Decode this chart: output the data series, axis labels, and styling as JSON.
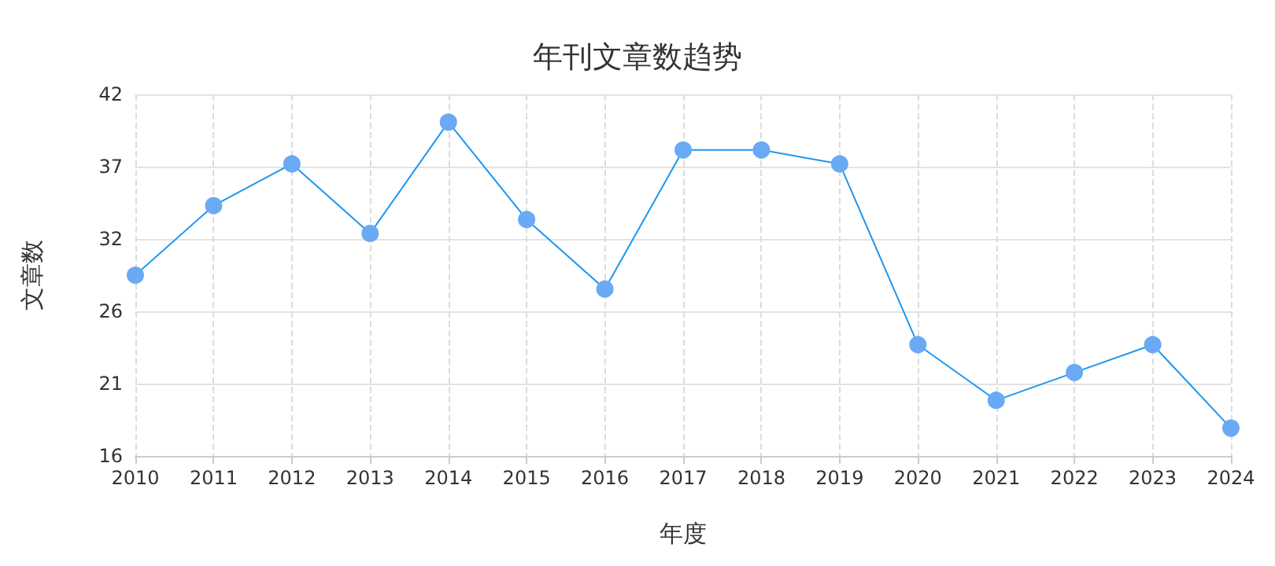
{
  "chart_data": {
    "type": "line",
    "title": "年刊文章数趋势",
    "xlabel": "年度",
    "ylabel": "文章数",
    "categories": [
      "2010",
      "2011",
      "2012",
      "2013",
      "2014",
      "2015",
      "2016",
      "2017",
      "2018",
      "2019",
      "2020",
      "2021",
      "2022",
      "2023",
      "2024"
    ],
    "series": [
      {
        "color": "#1e96f0",
        "values": [
          29,
          34,
          37,
          32,
          40,
          33,
          28,
          38,
          38,
          37,
          24,
          20,
          22,
          24,
          18
        ]
      }
    ],
    "ylim": [
      16,
      42
    ],
    "yticks": [
      16,
      {
        "value": 21.2,
        "label": "21"
      },
      {
        "value": 26.4,
        "label": "26"
      },
      {
        "value": 31.6,
        "label": "32"
      },
      {
        "value": 36.8,
        "label": "37"
      },
      42
    ],
    "grid": true,
    "marker": "circle",
    "line_style": "solid"
  }
}
